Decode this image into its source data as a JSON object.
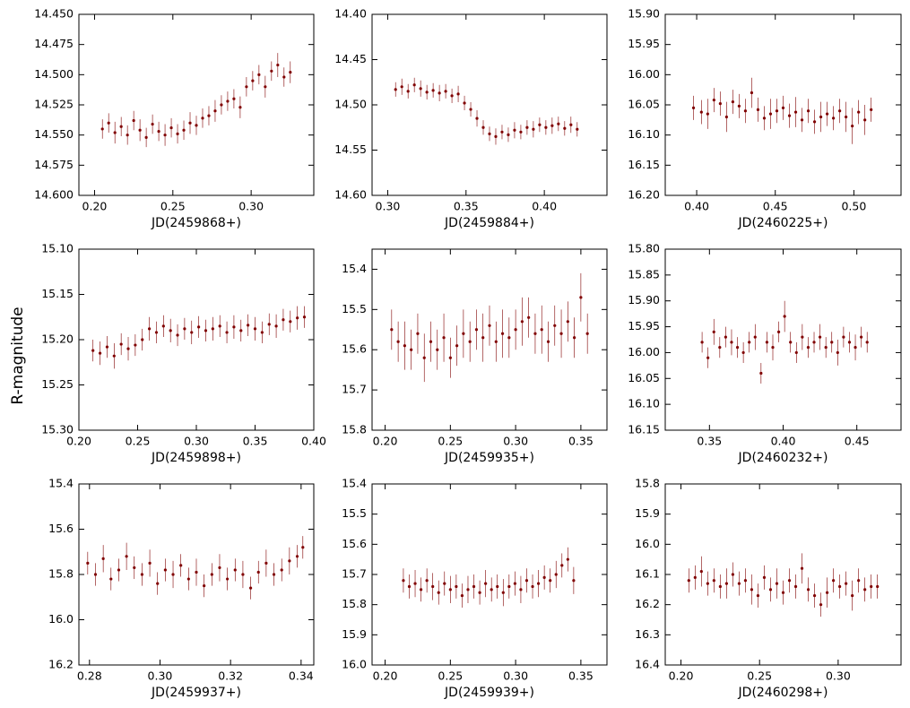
{
  "ylabel": "R-magnitude",
  "chart_data": [
    {
      "type": "scatter",
      "xlabel": "JD(2459868+)",
      "color": "#800000",
      "xlim": [
        0.19,
        0.34
      ],
      "ylim": [
        14.6,
        14.45
      ],
      "xticks": [
        {
          "value": 0.2,
          "label": "0.20"
        },
        0.25,
        {
          "value": 0.3,
          "label": "0.30"
        }
      ],
      "yticks": [
        {
          "value": 14.45,
          "label": "14.450"
        },
        14.475,
        {
          "value": 14.5,
          "label": "14.500"
        },
        14.525,
        {
          "value": 14.55,
          "label": "14.550"
        },
        14.575,
        {
          "value": 14.6,
          "label": "14.600"
        }
      ],
      "x": [
        0.205,
        0.209,
        0.213,
        0.217,
        0.221,
        0.225,
        0.229,
        0.233,
        0.237,
        0.241,
        0.245,
        0.249,
        0.253,
        0.257,
        0.261,
        0.265,
        0.269,
        0.273,
        0.277,
        0.281,
        0.285,
        0.289,
        0.293,
        0.297,
        0.301,
        0.305,
        0.309,
        0.313,
        0.317,
        0.321,
        0.325
      ],
      "values": [
        14.545,
        14.54,
        14.548,
        14.543,
        14.55,
        14.538,
        14.546,
        14.552,
        14.541,
        14.547,
        14.55,
        14.544,
        14.549,
        14.546,
        14.54,
        14.542,
        14.536,
        14.534,
        14.53,
        14.525,
        14.522,
        14.52,
        14.527,
        14.51,
        14.505,
        14.5,
        14.51,
        14.497,
        14.492,
        14.502,
        14.498
      ],
      "errors": [
        0.008,
        0.008,
        0.009,
        0.008,
        0.008,
        0.008,
        0.009,
        0.008,
        0.008,
        0.008,
        0.009,
        0.008,
        0.008,
        0.008,
        0.009,
        0.008,
        0.008,
        0.008,
        0.009,
        0.008,
        0.008,
        0.008,
        0.009,
        0.008,
        0.008,
        0.008,
        0.009,
        0.008,
        0.01,
        0.008,
        0.009
      ]
    },
    {
      "type": "scatter",
      "xlabel": "JD(2459884+)",
      "color": "#800000",
      "xlim": [
        0.29,
        0.44
      ],
      "ylim": [
        14.6,
        14.4
      ],
      "xticks": [
        {
          "value": 0.3,
          "label": "0.30"
        },
        0.35,
        {
          "value": 0.4,
          "label": "0.40"
        }
      ],
      "yticks": [
        {
          "value": 14.4,
          "label": "14.40"
        },
        14.45,
        {
          "value": 14.5,
          "label": "14.50"
        },
        14.55,
        {
          "value": 14.6,
          "label": "14.60"
        }
      ],
      "x": [
        0.305,
        0.309,
        0.313,
        0.317,
        0.321,
        0.325,
        0.329,
        0.333,
        0.337,
        0.341,
        0.345,
        0.349,
        0.353,
        0.357,
        0.361,
        0.365,
        0.369,
        0.373,
        0.377,
        0.381,
        0.385,
        0.389,
        0.393,
        0.397,
        0.401,
        0.405,
        0.409,
        0.413,
        0.417,
        0.421
      ],
      "values": [
        14.483,
        14.48,
        14.485,
        14.478,
        14.482,
        14.486,
        14.484,
        14.487,
        14.485,
        14.49,
        14.488,
        14.498,
        14.505,
        14.515,
        14.525,
        14.532,
        14.535,
        14.53,
        14.533,
        14.528,
        14.53,
        14.525,
        14.527,
        14.522,
        14.525,
        14.523,
        14.521,
        14.526,
        14.522,
        14.527
      ],
      "errors": [
        0.008,
        0.009,
        0.008,
        0.008,
        0.009,
        0.008,
        0.008,
        0.009,
        0.008,
        0.008,
        0.009,
        0.008,
        0.008,
        0.009,
        0.008,
        0.008,
        0.009,
        0.008,
        0.008,
        0.009,
        0.008,
        0.008,
        0.009,
        0.008,
        0.008,
        0.009,
        0.008,
        0.008,
        0.009,
        0.008
      ]
    },
    {
      "type": "scatter",
      "xlabel": "JD(2460225+)",
      "color": "#800000",
      "xlim": [
        0.38,
        0.53
      ],
      "ylim": [
        16.2,
        15.9
      ],
      "xticks": [
        {
          "value": 0.4,
          "label": "0.40"
        },
        0.45,
        {
          "value": 0.5,
          "label": "0.50"
        }
      ],
      "yticks": [
        {
          "value": 15.9,
          "label": "15.90"
        },
        15.95,
        {
          "value": 16,
          "label": "16.00"
        },
        16.05,
        {
          "value": 16.1,
          "label": "16.10"
        },
        16.15,
        {
          "value": 16.2,
          "label": "16.20"
        }
      ],
      "x": [
        0.398,
        0.403,
        0.407,
        0.411,
        0.415,
        0.419,
        0.423,
        0.427,
        0.431,
        0.435,
        0.439,
        0.443,
        0.447,
        0.451,
        0.455,
        0.459,
        0.463,
        0.467,
        0.471,
        0.475,
        0.479,
        0.483,
        0.487,
        0.491,
        0.495,
        0.499,
        0.503,
        0.507,
        0.511
      ],
      "values": [
        16.055,
        16.062,
        16.065,
        16.042,
        16.048,
        16.07,
        16.045,
        16.052,
        16.06,
        16.03,
        16.058,
        16.072,
        16.065,
        16.06,
        16.055,
        16.068,
        16.062,
        16.075,
        16.06,
        16.078,
        16.07,
        16.065,
        16.072,
        16.06,
        16.07,
        16.085,
        16.062,
        16.075,
        16.058
      ],
      "errors": [
        0.02,
        0.02,
        0.025,
        0.02,
        0.02,
        0.025,
        0.02,
        0.02,
        0.02,
        0.025,
        0.02,
        0.02,
        0.025,
        0.02,
        0.02,
        0.02,
        0.025,
        0.02,
        0.02,
        0.02,
        0.025,
        0.02,
        0.02,
        0.02,
        0.025,
        0.03,
        0.02,
        0.025,
        0.02
      ]
    },
    {
      "type": "scatter",
      "xlabel": "JD(2459898+)",
      "color": "#800000",
      "xlim": [
        0.2,
        0.4
      ],
      "ylim": [
        15.3,
        15.1
      ],
      "xticks": [
        {
          "value": 0.2,
          "label": "0.20"
        },
        0.25,
        {
          "value": 0.3,
          "label": "0.30"
        },
        0.35,
        {
          "value": 0.4,
          "label": "0.40"
        }
      ],
      "yticks": [
        {
          "value": 15.1,
          "label": "15.10"
        },
        15.15,
        {
          "value": 15.2,
          "label": "15.20"
        },
        15.25,
        {
          "value": 15.3,
          "label": "15.30"
        }
      ],
      "x": [
        0.212,
        0.218,
        0.224,
        0.23,
        0.236,
        0.242,
        0.248,
        0.254,
        0.26,
        0.266,
        0.272,
        0.278,
        0.284,
        0.29,
        0.296,
        0.302,
        0.308,
        0.314,
        0.32,
        0.326,
        0.332,
        0.338,
        0.344,
        0.35,
        0.356,
        0.362,
        0.368,
        0.374,
        0.38,
        0.386,
        0.392
      ],
      "values": [
        15.212,
        15.215,
        15.208,
        15.218,
        15.205,
        15.21,
        15.206,
        15.2,
        15.188,
        15.192,
        15.185,
        15.19,
        15.195,
        15.188,
        15.192,
        15.186,
        15.19,
        15.188,
        15.185,
        15.192,
        15.186,
        15.19,
        15.184,
        15.188,
        15.192,
        15.183,
        15.185,
        15.178,
        15.18,
        15.176,
        15.175
      ],
      "errors": [
        0.012,
        0.013,
        0.012,
        0.014,
        0.012,
        0.013,
        0.012,
        0.012,
        0.013,
        0.012,
        0.012,
        0.013,
        0.012,
        0.012,
        0.013,
        0.012,
        0.012,
        0.013,
        0.012,
        0.012,
        0.013,
        0.012,
        0.012,
        0.013,
        0.012,
        0.012,
        0.013,
        0.012,
        0.012,
        0.013,
        0.012
      ]
    },
    {
      "type": "scatter",
      "xlabel": "JD(2459935+)",
      "color": "#800000",
      "xlim": [
        0.19,
        0.37
      ],
      "ylim": [
        15.8,
        15.35
      ],
      "xticks": [
        {
          "value": 0.2,
          "label": "0.20"
        },
        0.25,
        {
          "value": 0.3,
          "label": "0.30"
        },
        0.35
      ],
      "yticks": [
        15.4,
        15.5,
        15.6,
        15.7,
        15.8
      ],
      "x": [
        0.205,
        0.21,
        0.215,
        0.22,
        0.225,
        0.23,
        0.235,
        0.24,
        0.245,
        0.25,
        0.255,
        0.26,
        0.265,
        0.27,
        0.275,
        0.28,
        0.285,
        0.29,
        0.295,
        0.3,
        0.305,
        0.31,
        0.315,
        0.32,
        0.325,
        0.33,
        0.335,
        0.34,
        0.345,
        0.35,
        0.355
      ],
      "values": [
        15.55,
        15.58,
        15.59,
        15.6,
        15.56,
        15.62,
        15.58,
        15.6,
        15.57,
        15.62,
        15.59,
        15.56,
        15.58,
        15.55,
        15.57,
        15.54,
        15.58,
        15.56,
        15.57,
        15.55,
        15.53,
        15.52,
        15.56,
        15.55,
        15.58,
        15.54,
        15.56,
        15.53,
        15.57,
        15.47,
        15.56
      ],
      "errors": [
        0.05,
        0.05,
        0.06,
        0.05,
        0.05,
        0.06,
        0.05,
        0.05,
        0.06,
        0.05,
        0.05,
        0.06,
        0.05,
        0.05,
        0.06,
        0.05,
        0.05,
        0.06,
        0.05,
        0.05,
        0.06,
        0.05,
        0.05,
        0.06,
        0.05,
        0.05,
        0.06,
        0.05,
        0.05,
        0.06,
        0.05
      ]
    },
    {
      "type": "scatter",
      "xlabel": "JD(2460232+)",
      "color": "#800000",
      "xlim": [
        0.32,
        0.48
      ],
      "ylim": [
        16.15,
        15.8
      ],
      "xticks": [
        0.35,
        {
          "value": 0.4,
          "label": "0.40"
        },
        0.45
      ],
      "yticks": [
        {
          "value": 15.8,
          "label": "15.80"
        },
        15.85,
        {
          "value": 15.9,
          "label": "15.90"
        },
        15.95,
        {
          "value": 16,
          "label": "16.00"
        },
        16.05,
        {
          "value": 16.1,
          "label": "16.10"
        },
        16.15
      ],
      "x": [
        0.345,
        0.349,
        0.353,
        0.357,
        0.361,
        0.365,
        0.369,
        0.373,
        0.377,
        0.381,
        0.385,
        0.389,
        0.393,
        0.397,
        0.401,
        0.405,
        0.409,
        0.413,
        0.417,
        0.421,
        0.425,
        0.429,
        0.433,
        0.437,
        0.441,
        0.445,
        0.449,
        0.453,
        0.457
      ],
      "values": [
        15.98,
        16.01,
        15.96,
        15.99,
        15.97,
        15.98,
        15.99,
        16.0,
        15.98,
        15.97,
        16.04,
        15.98,
        15.99,
        15.96,
        15.93,
        15.98,
        16.0,
        15.97,
        15.99,
        15.98,
        15.97,
        15.99,
        15.98,
        16.0,
        15.97,
        15.98,
        15.99,
        15.97,
        15.98
      ],
      "errors": [
        0.02,
        0.02,
        0.025,
        0.02,
        0.02,
        0.025,
        0.02,
        0.02,
        0.02,
        0.025,
        0.02,
        0.02,
        0.025,
        0.02,
        0.03,
        0.02,
        0.02,
        0.025,
        0.02,
        0.02,
        0.025,
        0.02,
        0.02,
        0.025,
        0.02,
        0.02,
        0.025,
        0.02,
        0.02
      ]
    },
    {
      "type": "scatter",
      "xlabel": "JD(2459937+)",
      "color": "#800000",
      "xlim": [
        0.277,
        0.3436
      ],
      "ylim": [
        16.2,
        15.4
      ],
      "xticks": [
        0.28,
        {
          "value": 0.3,
          "label": "0.30"
        },
        0.32,
        0.34
      ],
      "yticks": [
        15.4,
        15.6,
        15.8,
        {
          "value": 16,
          "label": "16.0"
        },
        16.2
      ],
      "x": [
        0.2795,
        0.2817,
        0.2839,
        0.2861,
        0.2883,
        0.2905,
        0.2927,
        0.2949,
        0.2971,
        0.2993,
        0.3015,
        0.3037,
        0.3059,
        0.3081,
        0.3103,
        0.3125,
        0.3147,
        0.3169,
        0.3191,
        0.3213,
        0.3235,
        0.3257,
        0.3279,
        0.3301,
        0.3323,
        0.3345,
        0.3367,
        0.3389,
        0.3405
      ],
      "values": [
        15.75,
        15.8,
        15.73,
        15.82,
        15.78,
        15.72,
        15.77,
        15.8,
        15.75,
        15.84,
        15.78,
        15.8,
        15.76,
        15.82,
        15.79,
        15.85,
        15.8,
        15.77,
        15.82,
        15.78,
        15.8,
        15.86,
        15.79,
        15.75,
        15.8,
        15.78,
        15.74,
        15.72,
        15.68
      ],
      "errors": [
        0.05,
        0.05,
        0.06,
        0.05,
        0.05,
        0.06,
        0.05,
        0.05,
        0.06,
        0.05,
        0.05,
        0.06,
        0.05,
        0.05,
        0.06,
        0.05,
        0.05,
        0.06,
        0.05,
        0.05,
        0.06,
        0.05,
        0.05,
        0.06,
        0.05,
        0.05,
        0.06,
        0.05,
        0.05
      ]
    },
    {
      "type": "scatter",
      "xlabel": "JD(2459939+)",
      "color": "#800000",
      "xlim": [
        0.19,
        0.37
      ],
      "ylim": [
        16.0,
        15.4
      ],
      "xticks": [
        {
          "value": 0.2,
          "label": "0.20"
        },
        0.25,
        {
          "value": 0.3,
          "label": "0.30"
        },
        0.35
      ],
      "yticks": [
        15.4,
        15.5,
        15.6,
        15.7,
        15.8,
        15.9,
        {
          "value": 16,
          "label": "16.0"
        }
      ],
      "x": [
        0.214,
        0.2185,
        0.223,
        0.2275,
        0.232,
        0.2365,
        0.241,
        0.2455,
        0.25,
        0.2545,
        0.259,
        0.2635,
        0.268,
        0.2725,
        0.277,
        0.2815,
        0.286,
        0.2905,
        0.295,
        0.2995,
        0.304,
        0.3085,
        0.313,
        0.3175,
        0.322,
        0.3265,
        0.331,
        0.3355,
        0.34,
        0.3445
      ],
      "values": [
        15.72,
        15.74,
        15.73,
        15.75,
        15.72,
        15.74,
        15.76,
        15.73,
        15.75,
        15.74,
        15.77,
        15.75,
        15.74,
        15.76,
        15.73,
        15.75,
        15.74,
        15.76,
        15.74,
        15.73,
        15.75,
        15.72,
        15.74,
        15.73,
        15.71,
        15.72,
        15.7,
        15.67,
        15.65,
        15.72
      ],
      "errors": [
        0.04,
        0.04,
        0.045,
        0.04,
        0.04,
        0.045,
        0.04,
        0.04,
        0.045,
        0.04,
        0.04,
        0.045,
        0.04,
        0.04,
        0.045,
        0.04,
        0.04,
        0.045,
        0.04,
        0.04,
        0.045,
        0.04,
        0.04,
        0.045,
        0.04,
        0.04,
        0.045,
        0.04,
        0.04,
        0.045
      ]
    },
    {
      "type": "scatter",
      "xlabel": "JD(2460298+)",
      "color": "#800000",
      "xlim": [
        0.19,
        0.34
      ],
      "ylim": [
        16.4,
        15.8
      ],
      "xticks": [
        {
          "value": 0.2,
          "label": "0.20"
        },
        0.25,
        {
          "value": 0.3,
          "label": "0.30"
        }
      ],
      "yticks": [
        15.8,
        15.9,
        {
          "value": 16,
          "label": "16.0"
        },
        16.1,
        16.2,
        16.3,
        16.4
      ],
      "x": [
        0.205,
        0.209,
        0.213,
        0.217,
        0.221,
        0.225,
        0.229,
        0.233,
        0.237,
        0.241,
        0.245,
        0.249,
        0.253,
        0.257,
        0.261,
        0.265,
        0.269,
        0.273,
        0.277,
        0.281,
        0.285,
        0.289,
        0.293,
        0.297,
        0.301,
        0.305,
        0.309,
        0.313,
        0.317,
        0.321,
        0.325
      ],
      "values": [
        16.12,
        16.11,
        16.09,
        16.13,
        16.12,
        16.14,
        16.13,
        16.1,
        16.13,
        16.12,
        16.15,
        16.17,
        16.11,
        16.15,
        16.13,
        16.16,
        16.12,
        16.14,
        16.08,
        16.15,
        16.17,
        16.2,
        16.16,
        16.12,
        16.14,
        16.13,
        16.17,
        16.12,
        16.15,
        16.14,
        16.14
      ],
      "errors": [
        0.04,
        0.04,
        0.05,
        0.04,
        0.04,
        0.04,
        0.05,
        0.04,
        0.04,
        0.04,
        0.05,
        0.04,
        0.04,
        0.04,
        0.05,
        0.04,
        0.04,
        0.04,
        0.05,
        0.04,
        0.04,
        0.04,
        0.05,
        0.04,
        0.04,
        0.04,
        0.05,
        0.04,
        0.04,
        0.04,
        0.04
      ]
    }
  ]
}
